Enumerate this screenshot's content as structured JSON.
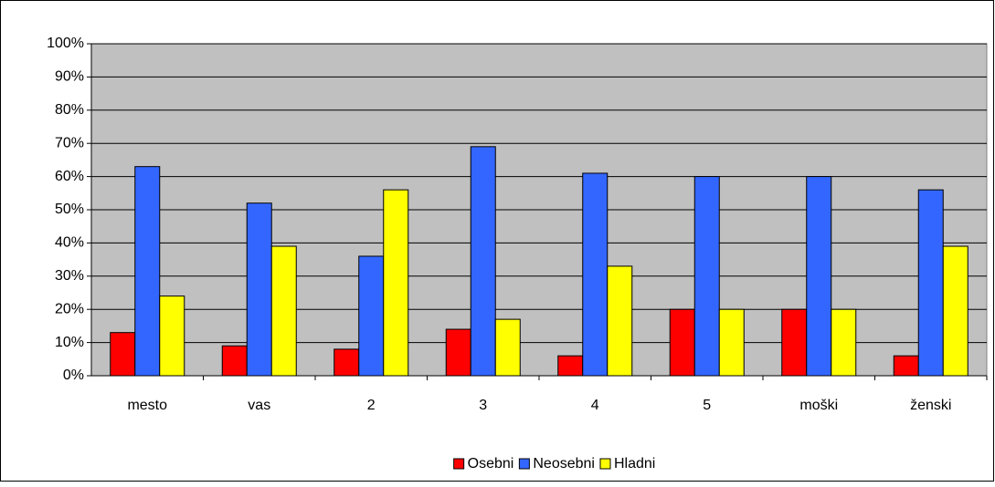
{
  "chart_data": {
    "type": "bar",
    "categories": [
      "mesto",
      "vas",
      "2",
      "3",
      "4",
      "5",
      "moški",
      "ženski"
    ],
    "series": [
      {
        "name": "Osebni",
        "color": "#ff0000",
        "values": [
          13,
          9,
          8,
          14,
          6,
          20,
          20,
          6
        ]
      },
      {
        "name": "Neosebni",
        "color": "#3366ff",
        "values": [
          63,
          52,
          36,
          69,
          61,
          60,
          60,
          56
        ]
      },
      {
        "name": "Hladni",
        "color": "#ffff00",
        "values": [
          24,
          39,
          56,
          17,
          33,
          20,
          20,
          39
        ]
      }
    ],
    "ylim": [
      0,
      100
    ],
    "yticks": [
      {
        "value": 0,
        "label": "0%"
      },
      {
        "value": 10,
        "label": "10%"
      },
      {
        "value": 20,
        "label": "20%"
      },
      {
        "value": 30,
        "label": "30%"
      },
      {
        "value": 40,
        "label": "40%"
      },
      {
        "value": 50,
        "label": "50%"
      },
      {
        "value": 60,
        "label": "60%"
      },
      {
        "value": 70,
        "label": "70%"
      },
      {
        "value": 80,
        "label": "80%"
      },
      {
        "value": 90,
        "label": "90%"
      },
      {
        "value": 100,
        "label": "100%"
      }
    ],
    "grid": true,
    "legend": "bottom",
    "background": "#c0c0c0"
  }
}
